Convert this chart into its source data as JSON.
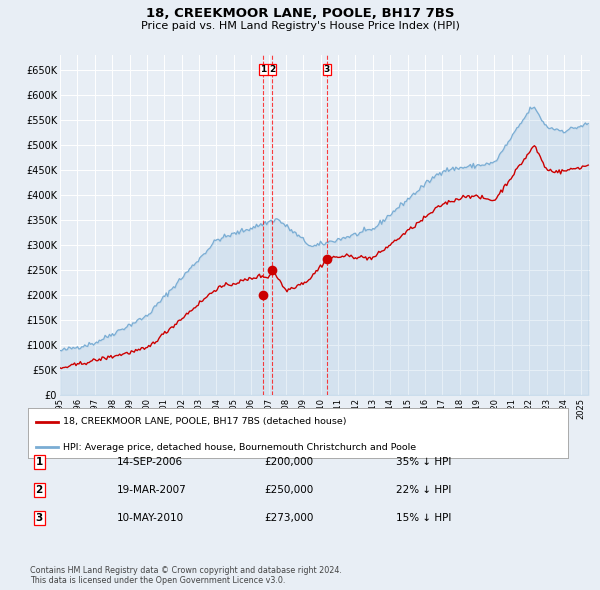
{
  "title": "18, CREEKMOOR LANE, POOLE, BH17 7BS",
  "subtitle": "Price paid vs. HM Land Registry's House Price Index (HPI)",
  "background_color": "#e8eef5",
  "plot_bg_color": "#e8eef5",
  "grid_color": "#FFFFFF",
  "hpi_color": "#7aadd4",
  "price_color": "#CC0000",
  "ylim": [
    0,
    680000
  ],
  "yticks": [
    0,
    50000,
    100000,
    150000,
    200000,
    250000,
    300000,
    350000,
    400000,
    450000,
    500000,
    550000,
    600000,
    650000
  ],
  "transactions": [
    {
      "label": "1",
      "date_x": 2006.71,
      "price": 200000
    },
    {
      "label": "2",
      "date_x": 2007.21,
      "price": 250000
    },
    {
      "label": "3",
      "date_x": 2010.36,
      "price": 273000
    }
  ],
  "legend_entries": [
    "18, CREEKMOOR LANE, POOLE, BH17 7BS (detached house)",
    "HPI: Average price, detached house, Bournemouth Christchurch and Poole"
  ],
  "table_rows": [
    {
      "num": "1",
      "date": "14-SEP-2006",
      "price": "£200,000",
      "hpi": "35% ↓ HPI"
    },
    {
      "num": "2",
      "date": "19-MAR-2007",
      "price": "£250,000",
      "hpi": "22% ↓ HPI"
    },
    {
      "num": "3",
      "date": "10-MAY-2010",
      "price": "£273,000",
      "hpi": "15% ↓ HPI"
    }
  ],
  "footer": "Contains HM Land Registry data © Crown copyright and database right 2024.\nThis data is licensed under the Open Government Licence v3.0.",
  "xmin": 1995.0,
  "xmax": 2025.5,
  "xtick_years": [
    1995,
    1996,
    1997,
    1998,
    1999,
    2000,
    2001,
    2002,
    2003,
    2004,
    2005,
    2006,
    2007,
    2008,
    2009,
    2010,
    2011,
    2012,
    2013,
    2014,
    2015,
    2016,
    2017,
    2018,
    2019,
    2020,
    2021,
    2022,
    2023,
    2024,
    2025
  ]
}
